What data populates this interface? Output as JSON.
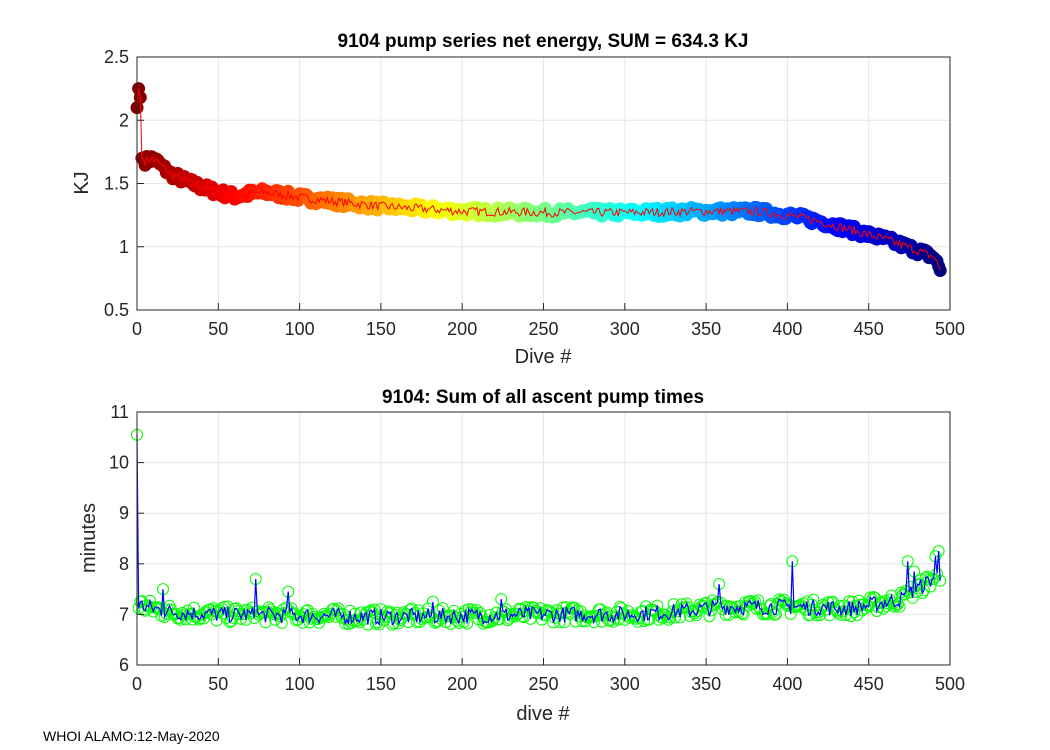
{
  "footer": {
    "text": "WHOI ALAMO:12-May-2020"
  },
  "chart_data": [
    {
      "id": "energy",
      "type": "scatter",
      "title": "9104 pump series net energy, SUM = 634.3 KJ",
      "xlabel": "Dive #",
      "ylabel": "KJ",
      "xlim": [
        0,
        500
      ],
      "ylim": [
        0.5,
        2.5
      ],
      "xticks": [
        0,
        50,
        100,
        150,
        200,
        250,
        300,
        350,
        400,
        450,
        500
      ],
      "yticks": [
        0.5,
        1,
        1.5,
        2,
        2.5
      ],
      "grid": true,
      "marker": "filled-circle",
      "marker_colormap": "jet-reversed-by-dive",
      "line_color": "#ff0000",
      "trend_keypoints": {
        "x": [
          0,
          1,
          2,
          3,
          5,
          10,
          20,
          30,
          40,
          50,
          60,
          70,
          80,
          100,
          120,
          150,
          200,
          250,
          300,
          350,
          380,
          400,
          420,
          440,
          460,
          480,
          490,
          494
        ],
        "y": [
          2.1,
          2.25,
          2.18,
          1.7,
          1.68,
          1.7,
          1.58,
          1.52,
          1.47,
          1.43,
          1.4,
          1.42,
          1.43,
          1.39,
          1.36,
          1.32,
          1.28,
          1.27,
          1.27,
          1.28,
          1.28,
          1.25,
          1.2,
          1.13,
          1.06,
          0.97,
          0.92,
          0.82
        ]
      },
      "n_dives": 494,
      "total": "634.3 KJ"
    },
    {
      "id": "pumptime",
      "type": "line",
      "title": "9104: Sum of all ascent pump times",
      "xlabel": "dive #",
      "ylabel": "minutes",
      "xlim": [
        0,
        500
      ],
      "ylim": [
        6,
        11
      ],
      "xticks": [
        0,
        50,
        100,
        150,
        200,
        250,
        300,
        350,
        400,
        450,
        500
      ],
      "yticks": [
        6,
        7,
        8,
        9,
        10,
        11
      ],
      "grid": true,
      "line_color": "#0000ff",
      "marker": "open-circle",
      "marker_color": "#00ff00",
      "trend_keypoints": {
        "x": [
          0,
          1,
          5,
          20,
          50,
          100,
          150,
          200,
          250,
          300,
          330,
          360,
          400,
          440,
          470,
          494
        ],
        "y": [
          10.55,
          7.2,
          7.15,
          7.05,
          7.0,
          6.98,
          6.95,
          6.97,
          7.0,
          7.0,
          7.05,
          7.15,
          7.15,
          7.12,
          7.3,
          7.8
        ]
      },
      "spikes": [
        {
          "x": 0,
          "y": 10.55
        },
        {
          "x": 16,
          "y": 7.5
        },
        {
          "x": 73,
          "y": 7.7
        },
        {
          "x": 93,
          "y": 7.45
        },
        {
          "x": 182,
          "y": 7.25
        },
        {
          "x": 224,
          "y": 7.3
        },
        {
          "x": 358,
          "y": 7.6
        },
        {
          "x": 403,
          "y": 8.05
        },
        {
          "x": 474,
          "y": 8.05
        },
        {
          "x": 478,
          "y": 7.85
        },
        {
          "x": 491,
          "y": 8.15
        },
        {
          "x": 493,
          "y": 8.25
        }
      ],
      "n_dives": 494
    }
  ]
}
